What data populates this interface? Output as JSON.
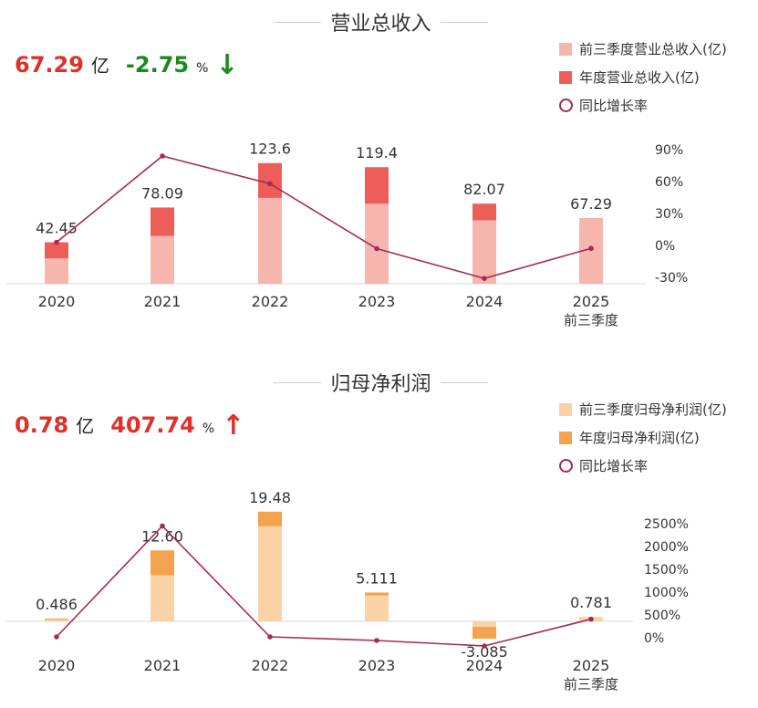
{
  "colors": {
    "red": "#e0302a",
    "green": "#1b8a1b",
    "line": "#a52a55",
    "rev_q3": "#f6b6ae",
    "rev_year": "#ee5e58",
    "np_q3": "#fbd2a6",
    "np_year": "#f3a24e"
  },
  "revenue": {
    "title": "营业总收入",
    "kpi": {
      "value": "67.29",
      "unit": "亿",
      "change": "-2.75",
      "pct": "%",
      "arrow": "↓"
    },
    "legend": [
      "前三季度营业总收入(亿)",
      "年度营业总收入(亿)",
      "同比增长率"
    ],
    "chart_data": {
      "type": "bar",
      "title": "营业总收入",
      "categories": [
        "2020",
        "2021",
        "2022",
        "2023",
        "2024",
        "2025"
      ],
      "category_sublabels": [
        "",
        "",
        "",
        "",
        "",
        "前三季度"
      ],
      "series": [
        {
          "name": "前三季度营业总收入(亿)",
          "values": [
            26,
            49,
            88,
            82,
            65,
            67.29
          ]
        },
        {
          "name": "年度营业总收入(亿)",
          "values": [
            42.45,
            78.09,
            123.6,
            119.4,
            82.07,
            null
          ]
        },
        {
          "name": "同比增长率",
          "axis": "right",
          "values": [
            3,
            84,
            58,
            -3,
            -31,
            -2.75
          ]
        }
      ],
      "data_labels": [
        "42.45",
        "78.09",
        "123.6",
        "119.4",
        "82.07",
        "67.29"
      ],
      "right_axis": {
        "ticks": [
          "90%",
          "60%",
          "30%",
          "0%",
          "-30%"
        ],
        "tick_values": [
          90,
          60,
          30,
          0,
          -30
        ]
      }
    }
  },
  "profit": {
    "title": "归母净利润",
    "kpi": {
      "value": "0.78",
      "unit": "亿",
      "change": "407.74",
      "pct": "%",
      "arrow": "↑"
    },
    "legend": [
      "前三季度归母净利润(亿)",
      "年度归母净利润(亿)",
      "同比增长率"
    ],
    "chart_data": {
      "type": "bar",
      "title": "归母净利润",
      "categories": [
        "2020",
        "2021",
        "2022",
        "2023",
        "2024",
        "2025"
      ],
      "category_sublabels": [
        "",
        "",
        "",
        "",
        "",
        "前三季度"
      ],
      "series": [
        {
          "name": "前三季度归母净利润(亿)",
          "values": [
            0.3,
            8.2,
            16.9,
            4.6,
            -1.0,
            0.781
          ]
        },
        {
          "name": "年度归母净利润(亿)",
          "values": [
            0.486,
            12.6,
            19.48,
            5.111,
            -3.085,
            null
          ]
        },
        {
          "name": "同比增长率",
          "axis": "right",
          "values": [
            20,
            2450,
            20,
            -60,
            -180,
            407.74
          ]
        }
      ],
      "data_labels": [
        "0.486",
        "12.60",
        "19.48",
        "5.111",
        "-3.085",
        "0.781"
      ],
      "right_axis": {
        "ticks": [
          "2500%",
          "2000%",
          "1500%",
          "1000%",
          "500%",
          "0%"
        ],
        "tick_values": [
          2500,
          2000,
          1500,
          1000,
          500,
          0
        ]
      }
    }
  }
}
